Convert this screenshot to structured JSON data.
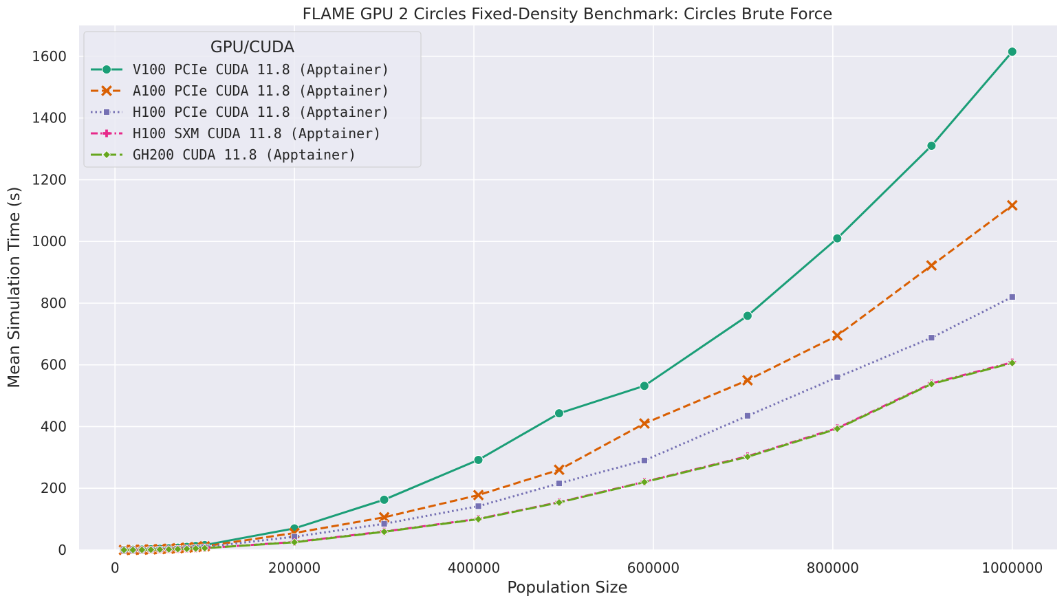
{
  "chart_data": {
    "type": "line",
    "title": "FLAME GPU 2 Circles Fixed-Density Benchmark: Circles Brute Force",
    "xlabel": "Population Size",
    "ylabel": "Mean Simulation Time (s)",
    "xlim": [
      -40000,
      1050000
    ],
    "ylim": [
      0,
      1700
    ],
    "xticks": [
      0,
      200000,
      400000,
      600000,
      800000,
      1000000
    ],
    "xtick_labels": [
      "0",
      "200000",
      "400000",
      "600000",
      "800000",
      "1000000"
    ],
    "yticks": [
      0,
      200,
      400,
      600,
      800,
      1000,
      1200,
      1400,
      1600
    ],
    "ytick_labels": [
      "0",
      "200",
      "400",
      "600",
      "800",
      "1000",
      "1200",
      "1400",
      "1600"
    ],
    "grid": true,
    "legend": {
      "title": "GPU/CUDA",
      "placement": "upper-left"
    },
    "x": [
      10000,
      20000,
      30000,
      40000,
      50000,
      60000,
      70000,
      80000,
      90000,
      100000,
      200000,
      300000,
      405000,
      495000,
      590000,
      705000,
      805000,
      910000,
      1000000
    ],
    "series": [
      {
        "name": "V100 PCIe CUDA 11.8 (Apptainer)",
        "color": "#1b9e77",
        "dash": "solid",
        "marker": "circle",
        "values": [
          0.3,
          0.8,
          1.5,
          2.5,
          3.8,
          5.5,
          7.5,
          10,
          13,
          16,
          70,
          163,
          292,
          443,
          532,
          759,
          1010,
          1310,
          1615
        ]
      },
      {
        "name": "A100 PCIe CUDA 11.8 (Apptainer)",
        "color": "#d95f02",
        "dash": "dashed",
        "marker": "x",
        "values": [
          0.2,
          0.6,
          1.2,
          2.0,
          3.0,
          4.2,
          5.7,
          7.5,
          9.5,
          12,
          55,
          106,
          178,
          260,
          410,
          550,
          695,
          922,
          1117
        ]
      },
      {
        "name": "H100 PCIe CUDA 11.8 (Apptainer)",
        "color": "#7570b3",
        "dash": "dotted",
        "marker": "square",
        "values": [
          0.2,
          0.5,
          1.0,
          1.6,
          2.4,
          3.4,
          4.6,
          6.0,
          7.6,
          9.5,
          43,
          85,
          142,
          216,
          290,
          435,
          560,
          688,
          820
        ]
      },
      {
        "name": "H100 SXM CUDA 11.8 (Apptainer)",
        "color": "#e7298a",
        "dash": "dashdot",
        "marker": "plus",
        "values": [
          0.1,
          0.3,
          0.6,
          1.0,
          1.5,
          2.1,
          2.9,
          3.8,
          4.8,
          6.0,
          26,
          60,
          101,
          155,
          221,
          304,
          395,
          540,
          608
        ]
      },
      {
        "name": "GH200 CUDA 11.8 (Apptainer)",
        "color": "#66a61e",
        "dash": "longdash",
        "marker": "diamond",
        "values": [
          0.1,
          0.3,
          0.6,
          1.0,
          1.5,
          2.1,
          2.9,
          3.8,
          4.8,
          6.0,
          25,
          59,
          100,
          154,
          220,
          302,
          393,
          538,
          606
        ]
      }
    ]
  }
}
